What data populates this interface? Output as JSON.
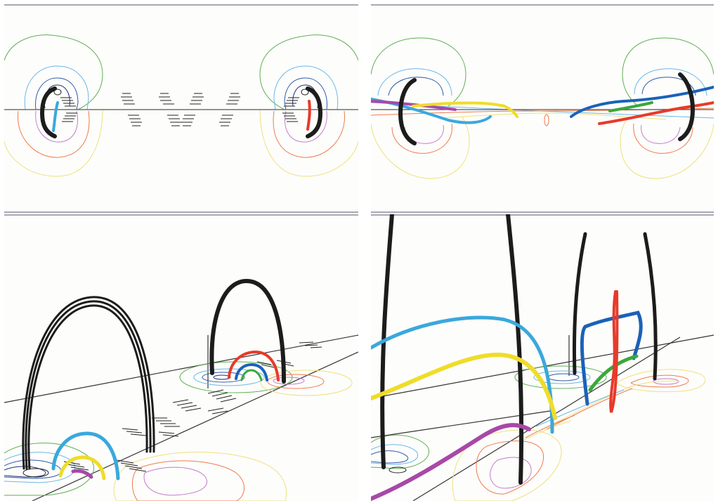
{
  "figure": {
    "panels": [
      {
        "id": "top-left",
        "view": "side-initial"
      },
      {
        "id": "top-right",
        "view": "side-evolved"
      },
      {
        "id": "bottom-left",
        "view": "perspective-initial"
      },
      {
        "id": "bottom-right",
        "view": "perspective-evolved"
      }
    ],
    "colors": {
      "background": "#fdfdfc",
      "frame_line": "#8c8c99",
      "flux_rope": "#1c1c1c",
      "contour_green": "#5fae52",
      "contour_cyan": "#6ab8e8",
      "contour_blue": "#2f5aa8",
      "contour_navy": "#1e2f7a",
      "contour_orange": "#f07a4a",
      "contour_purple": "#c47ac8",
      "contour_yellow": "#f0e07a",
      "fieldline_cyan": "#3aa8dc",
      "fieldline_red": "#e83a2a",
      "fieldline_yellow": "#f0dc28",
      "fieldline_purple": "#a848a8",
      "fieldline_blue": "#1a62b8",
      "fieldline_green": "#3aa83a"
    }
  }
}
